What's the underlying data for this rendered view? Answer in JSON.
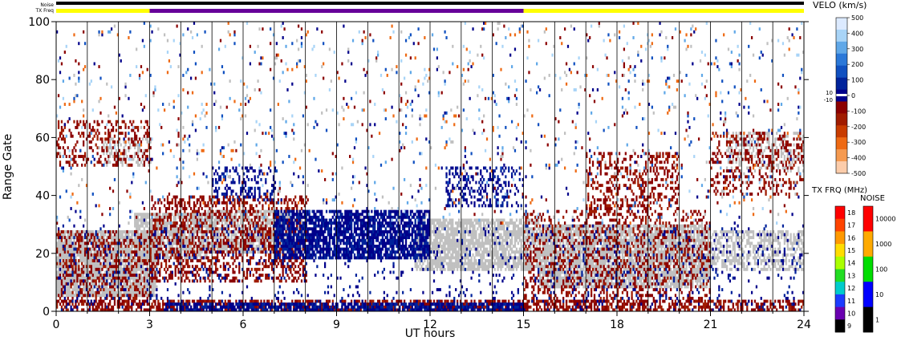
{
  "strip_labels": {
    "noise": "Noise",
    "tx_freq": "TX Freq"
  },
  "chart_data": {
    "type": "heatmap",
    "xlabel": "UT hours",
    "ylabel": "Range Gate",
    "xlim": [
      0,
      24
    ],
    "ylim": [
      0,
      100
    ],
    "x_ticks": [
      "0",
      "3",
      "6",
      "9",
      "12",
      "15",
      "18",
      "21",
      "24"
    ],
    "y_ticks": [
      "0",
      "20",
      "40",
      "60",
      "80",
      "100"
    ],
    "colors": {
      "ground_scatter": "#c0c0c0",
      "negative_velocity": "#8b0000",
      "positive_velocity": "#00008b",
      "noise_bar": "#000000",
      "tx_low": "#ffff00",
      "tx_mid": "#660099"
    },
    "noise_strip": {
      "level": "1"
    },
    "tx_freq_strip": [
      {
        "from": 0,
        "to": 3,
        "color": "#ffff00"
      },
      {
        "from": 3,
        "to": 15,
        "color": "#660099"
      },
      {
        "from": 15,
        "to": 24,
        "color": "#ffff00"
      }
    ],
    "velocity_scale": {
      "title": "VELO (km/s)",
      "ticks": [
        "500",
        "400",
        "300",
        "200",
        "100",
        "0",
        "-100",
        "-200",
        "-300",
        "-400",
        "-500"
      ],
      "threshold_labels": [
        "10",
        "-10"
      ],
      "colors": [
        "#dceaff",
        "#a8d4f7",
        "#60a8e8",
        "#2b78d8",
        "#1050c0",
        "#00239b",
        "#00008b",
        "#8b0000",
        "#a01c00",
        "#c83c00",
        "#ee6a14",
        "#f59a50",
        "#fcccaa"
      ]
    },
    "txfreq_scale": {
      "title": "TX FRQ (MHz)",
      "ticks": [
        "18",
        "17",
        "16",
        "15",
        "14",
        "13",
        "12",
        "11",
        "10",
        "9"
      ],
      "colors": [
        "#ff0000",
        "#ff4400",
        "#ff9900",
        "#ffdd00",
        "#aaff00",
        "#22dd22",
        "#00cccc",
        "#1c3cff",
        "#6a00b0",
        "#000000"
      ]
    },
    "noise_scale": {
      "title": "NOISE",
      "ticks": [
        "10000",
        "1000",
        "100",
        "10",
        "1"
      ],
      "colors": [
        "#ff0000",
        "#ffaa00",
        "#00dd00",
        "#0000ff",
        "#000000"
      ]
    },
    "scatter_regions": [
      {
        "kind": "ground",
        "x": [
          0,
          3.2
        ],
        "y": [
          5,
          28
        ],
        "density": 0.85
      },
      {
        "kind": "ground",
        "x": [
          2.5,
          4.8
        ],
        "y": [
          18,
          34
        ],
        "density": 0.8
      },
      {
        "kind": "ground",
        "x": [
          4.8,
          8
        ],
        "y": [
          20,
          35
        ],
        "density": 0.7
      },
      {
        "kind": "ground",
        "x": [
          11.5,
          15.5
        ],
        "y": [
          14,
          32
        ],
        "density": 0.75
      },
      {
        "kind": "ground",
        "x": [
          15.5,
          21
        ],
        "y": [
          8,
          30
        ],
        "density": 0.8
      },
      {
        "kind": "ground",
        "x": [
          20.5,
          24
        ],
        "y": [
          14,
          28
        ],
        "density": 0.5
      },
      {
        "kind": "ground",
        "x": [
          21.5,
          24
        ],
        "y": [
          48,
          62
        ],
        "density": 0.35
      },
      {
        "kind": "ground",
        "x": [
          1.5,
          3
        ],
        "y": [
          50,
          60
        ],
        "density": 0.35
      },
      {
        "kind": "negative",
        "x": [
          0,
          24
        ],
        "y": [
          0,
          4
        ],
        "density": 0.55
      },
      {
        "kind": "negative",
        "x": [
          0,
          3
        ],
        "y": [
          4,
          28
        ],
        "density": 0.3
      },
      {
        "kind": "negative",
        "x": [
          3,
          8
        ],
        "y": [
          10,
          40
        ],
        "density": 0.35
      },
      {
        "kind": "negative",
        "x": [
          15,
          21
        ],
        "y": [
          3,
          35
        ],
        "density": 0.25
      },
      {
        "kind": "negative",
        "x": [
          0,
          3
        ],
        "y": [
          50,
          66
        ],
        "density": 0.25
      },
      {
        "kind": "negative",
        "x": [
          17,
          20
        ],
        "y": [
          35,
          55
        ],
        "density": 0.3
      },
      {
        "kind": "negative",
        "x": [
          21,
          24
        ],
        "y": [
          40,
          62
        ],
        "density": 0.25
      },
      {
        "kind": "positive",
        "x": [
          7,
          12
        ],
        "y": [
          18,
          35
        ],
        "density": 0.75
      },
      {
        "kind": "positive",
        "x": [
          3.5,
          15
        ],
        "y": [
          0,
          3
        ],
        "density": 0.7
      },
      {
        "kind": "positive",
        "x": [
          12.5,
          15
        ],
        "y": [
          36,
          50
        ],
        "density": 0.3
      },
      {
        "kind": "positive",
        "x": [
          5,
          7
        ],
        "y": [
          38,
          50
        ],
        "density": 0.3
      },
      {
        "kind": "positive",
        "x": [
          0,
          24
        ],
        "y": [
          0,
          30
        ],
        "density": 0.06
      },
      {
        "kind": "mixed",
        "x": [
          0,
          24
        ],
        "y": [
          30,
          100
        ],
        "density": 0.04
      }
    ]
  }
}
